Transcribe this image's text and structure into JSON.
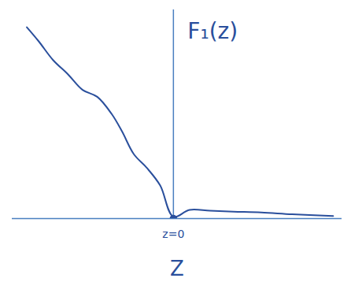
{
  "chart_data": {
    "type": "line",
    "y_label": "F₁(z)",
    "x_label": "Z",
    "x": [
      -10,
      -9.2,
      -8.2,
      -7.2,
      -6.2,
      -5.2,
      -4.2,
      -3.5,
      -2.7,
      -1.8,
      -0.9,
      0,
      1.1,
      2.5,
      4.1,
      6,
      8.1,
      10.9
    ],
    "values": [
      11.0,
      10.2,
      9.1,
      8.3,
      7.4,
      7.0,
      6.0,
      5.0,
      3.7,
      2.9,
      1.9,
      0.1,
      0.5,
      0.45,
      0.4,
      0.35,
      0.25,
      0.15
    ],
    "color": "#2a4f9c",
    "xlim": [
      -11,
      11.5
    ],
    "ylim": [
      0,
      12
    ],
    "xticks": [],
    "yticks": [],
    "tick_labels": false,
    "annotations": [
      {
        "text": "z=0",
        "x": 0,
        "y": 0
      }
    ]
  }
}
